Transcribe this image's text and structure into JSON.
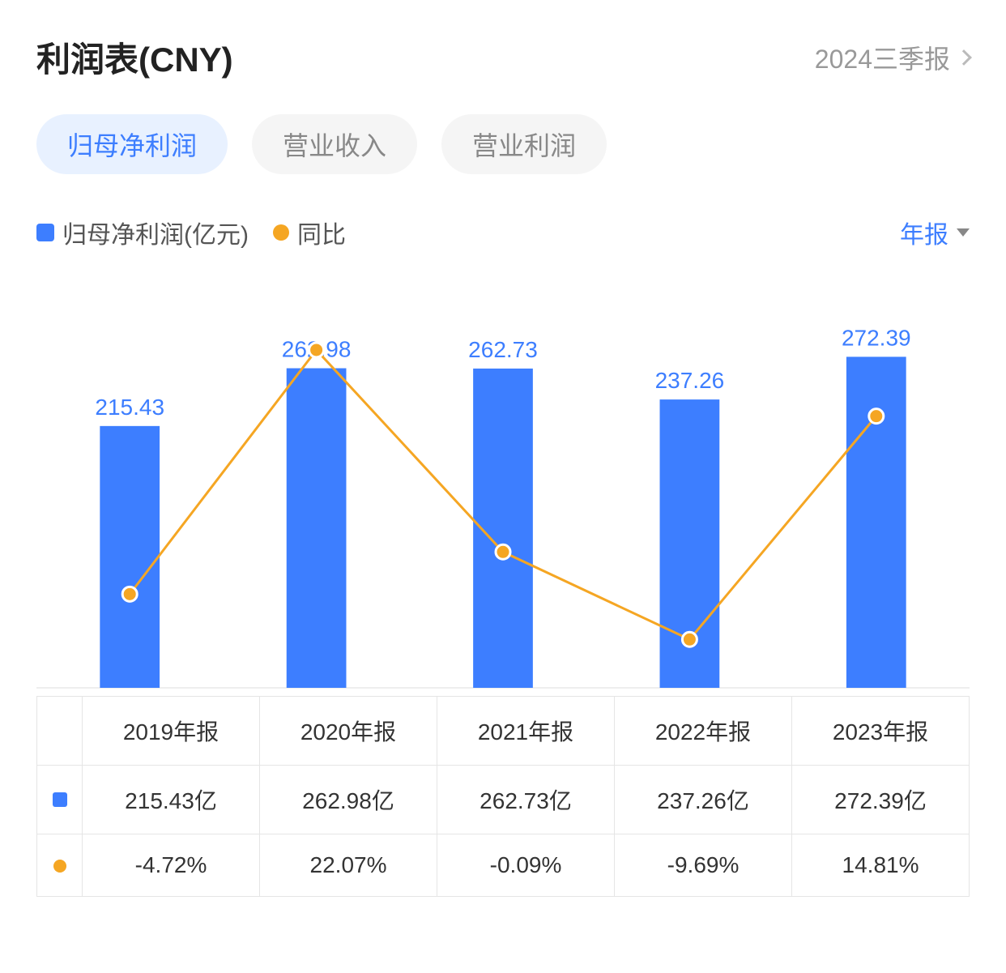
{
  "header": {
    "title": "利润表(CNY)",
    "period_label": "2024三季报"
  },
  "tabs": [
    {
      "label": "归母净利润",
      "active": true
    },
    {
      "label": "营业收入",
      "active": false
    },
    {
      "label": "营业利润",
      "active": false
    }
  ],
  "legend": {
    "series_bar": {
      "label": "归母净利润(亿元)",
      "color": "#3d7eff"
    },
    "series_line": {
      "label": "同比",
      "color": "#f5a623"
    }
  },
  "report_type_selector": {
    "label": "年报"
  },
  "chart": {
    "type": "bar+line",
    "background_color": "#ffffff",
    "categories": [
      "2019年报",
      "2020年报",
      "2021年报",
      "2022年报",
      "2023年报"
    ],
    "bars": {
      "values": [
        215.43,
        262.98,
        262.73,
        237.26,
        272.39
      ],
      "value_labels": [
        "215.43",
        "262.98",
        "262.73",
        "237.26",
        "272.39"
      ],
      "color": "#3d7eff",
      "bar_width_ratio": 0.32,
      "ylim": [
        0,
        300
      ],
      "label_fontsize": 28
    },
    "line": {
      "values": [
        -4.72,
        22.07,
        -0.09,
        -9.69,
        14.81
      ],
      "color": "#f5a623",
      "marker_fill": "#f5a623",
      "marker_stroke": "#ffffff",
      "marker_radius": 9,
      "line_width": 3,
      "ylim": [
        -15,
        25
      ]
    },
    "baseline_color": "#dddddd",
    "label_color": "#3d7eff"
  },
  "table": {
    "columns": [
      "2019年报",
      "2020年报",
      "2021年报",
      "2022年报",
      "2023年报"
    ],
    "rows": [
      {
        "marker": {
          "type": "square",
          "color": "#3d7eff"
        },
        "cells": [
          "215.43亿",
          "262.98亿",
          "262.73亿",
          "237.26亿",
          "272.39亿"
        ],
        "cell_class": [
          "",
          "",
          "",
          "",
          ""
        ]
      },
      {
        "marker": {
          "type": "circle",
          "color": "#f5a623"
        },
        "cells": [
          "-4.72%",
          "22.07%",
          "-0.09%",
          "-9.69%",
          "14.81%"
        ],
        "cell_class": [
          "neg",
          "pos",
          "neg",
          "neg",
          "pos"
        ]
      }
    ],
    "positive_color": "#f04848",
    "negative_color": "#1db06b"
  },
  "footer_watermark": ""
}
